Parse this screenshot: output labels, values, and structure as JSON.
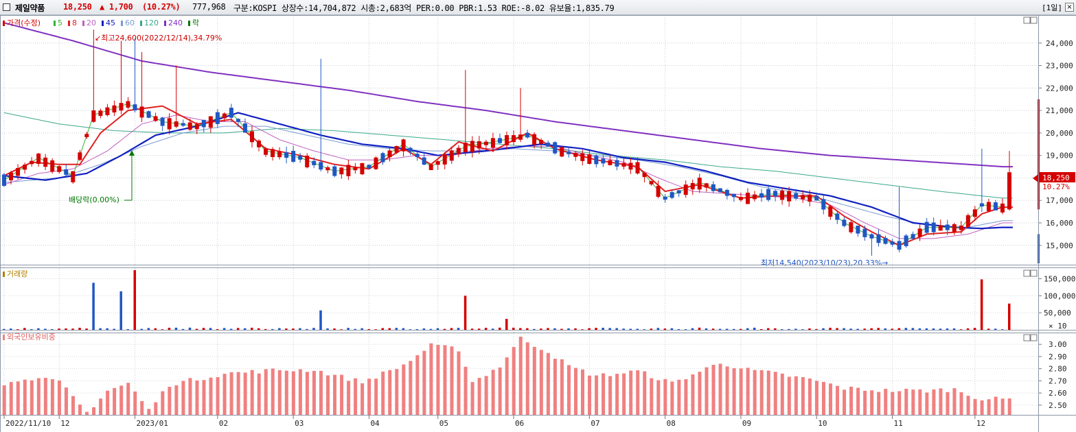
{
  "header": {
    "stock_name": "제일약품",
    "price": "18,250",
    "change": "▲ 1,700",
    "change_pct": "(10.27%)",
    "volume": "777,968",
    "info": "구분:KOSPI 상장수:14,704,872 시총:2,683억 PER:0.00 PBR:1.53 ROE:-8.02 유보율:1,835.79",
    "period": "[1일]",
    "close_glyph": "×"
  },
  "colors": {
    "up": "#d40000",
    "down": "#1f56c4",
    "ma5": "#33b533",
    "ma8": "#e02020",
    "ma20": "#c060c0",
    "ma45": "#1020c0",
    "ma60": "#7a9ad0",
    "ma120": "#3aa88a",
    "ma240": "#8030c0",
    "foreign": "#f08080",
    "annotation": "#cc0000",
    "dividend": "#007700"
  },
  "legend": {
    "price": "가격(수정)",
    "ma": [
      {
        "label": "5",
        "color": "#33b533"
      },
      {
        "label": "8",
        "color": "#e02020"
      },
      {
        "label": "20",
        "color": "#c060c0"
      },
      {
        "label": "45",
        "color": "#1020c0"
      },
      {
        "label": "60",
        "color": "#7a9ad0"
      },
      {
        "label": "120",
        "color": "#3aa88a"
      },
      {
        "label": "240",
        "color": "#8030c0"
      }
    ],
    "fall": "락"
  },
  "annotations": {
    "high": "↙최고24,600(2022/12/14),34.79%",
    "low": "최저14,540(2023/10/23),20.33%→",
    "dividend": "배당락(0.00%)"
  },
  "price_tag": {
    "value": "18,250",
    "pct": "10.27%"
  },
  "volume_panel": {
    "title": "거래량",
    "unit": "× 10"
  },
  "foreign_panel": {
    "title": "외국인보유비중"
  },
  "chart_data": [
    {
      "type": "candlestick",
      "title": "가격(수정)",
      "x_labels": [
        "2022/11/10",
        "12",
        "2023/01",
        "02",
        "03",
        "04",
        "05",
        "06",
        "07",
        "08",
        "09",
        "10",
        "11",
        "12"
      ],
      "ylim": [
        14200,
        25000
      ],
      "yticks": [
        15000,
        16000,
        17000,
        18000,
        19000,
        20000,
        21000,
        22000,
        23000,
        24000
      ],
      "high": {
        "value": 24600,
        "date": "2022/12/14"
      },
      "low": {
        "value": 14540,
        "date": "2023/10/23"
      },
      "last": 18250,
      "ma_levels": [
        {
          "name": "5",
          "points": [
            [
              0,
              17900
            ],
            [
              5,
              18900
            ],
            [
              10,
              18100
            ],
            [
              13,
              20800
            ],
            [
              18,
              21300
            ],
            [
              23,
              20500
            ],
            [
              28,
              20300
            ],
            [
              33,
              20900
            ],
            [
              38,
              19200
            ],
            [
              43,
              18900
            ],
            [
              48,
              18300
            ],
            [
              53,
              18500
            ],
            [
              58,
              19500
            ],
            [
              62,
              18500
            ],
            [
              67,
              19400
            ],
            [
              71,
              19600
            ],
            [
              76,
              19900
            ],
            [
              81,
              19200
            ],
            [
              86,
              18800
            ],
            [
              92,
              18500
            ],
            [
              96,
              17100
            ],
            [
              101,
              17800
            ],
            [
              107,
              17100
            ],
            [
              112,
              17300
            ],
            [
              118,
              17100
            ],
            [
              122,
              16000
            ],
            [
              126,
              15400
            ],
            [
              130,
              15000
            ],
            [
              134,
              15800
            ],
            [
              139,
              15800
            ],
            [
              142,
              16800
            ],
            [
              145,
              16700
            ]
          ]
        },
        {
          "name": "8",
          "points": [
            [
              0,
              18100
            ],
            [
              4,
              18700
            ],
            [
              8,
              18600
            ],
            [
              11,
              18600
            ],
            [
              14,
              20000
            ],
            [
              18,
              21000
            ],
            [
              23,
              21200
            ],
            [
              28,
              20400
            ],
            [
              33,
              20600
            ],
            [
              38,
              19300
            ],
            [
              43,
              19000
            ],
            [
              48,
              18600
            ],
            [
              53,
              18400
            ],
            [
              58,
              19300
            ],
            [
              62,
              18600
            ],
            [
              66,
              19600
            ],
            [
              71,
              19200
            ],
            [
              76,
              20000
            ],
            [
              80,
              19300
            ],
            [
              86,
              18800
            ],
            [
              92,
              18500
            ],
            [
              96,
              17400
            ],
            [
              101,
              17700
            ],
            [
              107,
              17100
            ],
            [
              112,
              17200
            ],
            [
              118,
              17200
            ],
            [
              122,
              16300
            ],
            [
              126,
              15600
            ],
            [
              130,
              15000
            ],
            [
              134,
              15500
            ],
            [
              139,
              15600
            ],
            [
              142,
              16400
            ],
            [
              145,
              16700
            ]
          ]
        },
        {
          "name": "20",
          "points": [
            [
              0,
              17700
            ],
            [
              5,
              18200
            ],
            [
              10,
              18400
            ],
            [
              15,
              19200
            ],
            [
              20,
              20400
            ],
            [
              25,
              20800
            ],
            [
              30,
              20500
            ],
            [
              35,
              20500
            ],
            [
              40,
              19700
            ],
            [
              45,
              19200
            ],
            [
              50,
              18800
            ],
            [
              55,
              18800
            ],
            [
              60,
              19000
            ],
            [
              65,
              19000
            ],
            [
              70,
              19300
            ],
            [
              75,
              19400
            ],
            [
              80,
              19400
            ],
            [
              85,
              19000
            ],
            [
              90,
              18700
            ],
            [
              95,
              18000
            ],
            [
              100,
              17400
            ],
            [
              105,
              17300
            ],
            [
              110,
              17200
            ],
            [
              115,
              17100
            ],
            [
              120,
              16800
            ],
            [
              125,
              16000
            ],
            [
              130,
              15300
            ],
            [
              135,
              15300
            ],
            [
              140,
              15500
            ],
            [
              145,
              16000
            ]
          ]
        },
        {
          "name": "45",
          "points": [
            [
              0,
              18100
            ],
            [
              6,
              17900
            ],
            [
              12,
              18200
            ],
            [
              17,
              19000
            ],
            [
              22,
              19900
            ],
            [
              28,
              20300
            ],
            [
              34,
              20900
            ],
            [
              40,
              20400
            ],
            [
              46,
              19900
            ],
            [
              52,
              19500
            ],
            [
              58,
              19300
            ],
            [
              63,
              19000
            ],
            [
              70,
              19200
            ],
            [
              78,
              19500
            ],
            [
              84,
              19300
            ],
            [
              90,
              18900
            ],
            [
              96,
              18700
            ],
            [
              102,
              18300
            ],
            [
              108,
              17800
            ],
            [
              114,
              17500
            ],
            [
              120,
              17200
            ],
            [
              126,
              16700
            ],
            [
              132,
              16000
            ],
            [
              138,
              15800
            ],
            [
              142,
              15750
            ],
            [
              145,
              15800
            ]
          ]
        },
        {
          "name": "60",
          "points": [
            [
              0,
              17800
            ],
            [
              8,
              18000
            ],
            [
              14,
              18600
            ],
            [
              20,
              19400
            ],
            [
              26,
              20000
            ],
            [
              32,
              20300
            ],
            [
              38,
              20300
            ],
            [
              44,
              19900
            ],
            [
              50,
              19500
            ],
            [
              56,
              19300
            ],
            [
              62,
              19200
            ],
            [
              68,
              19200
            ],
            [
              74,
              19300
            ],
            [
              80,
              19200
            ],
            [
              86,
              19000
            ],
            [
              92,
              18800
            ],
            [
              98,
              18500
            ],
            [
              104,
              18100
            ],
            [
              110,
              17600
            ],
            [
              116,
              17300
            ],
            [
              122,
              16800
            ],
            [
              128,
              16300
            ],
            [
              134,
              15900
            ],
            [
              140,
              15800
            ],
            [
              145,
              16100
            ]
          ]
        },
        {
          "name": "120",
          "points": [
            [
              0,
              20900
            ],
            [
              8,
              20400
            ],
            [
              16,
              20100
            ],
            [
              24,
              20000
            ],
            [
              32,
              20000
            ],
            [
              40,
              20200
            ],
            [
              48,
              20100
            ],
            [
              56,
              19900
            ],
            [
              64,
              19700
            ],
            [
              72,
              19500
            ],
            [
              80,
              19300
            ],
            [
              88,
              19000
            ],
            [
              96,
              18800
            ],
            [
              104,
              18500
            ],
            [
              112,
              18300
            ],
            [
              120,
              18000
            ],
            [
              128,
              17700
            ],
            [
              136,
              17400
            ],
            [
              142,
              17200
            ],
            [
              145,
              17100
            ]
          ]
        },
        {
          "name": "240",
          "points": [
            [
              0,
              24900
            ],
            [
              10,
              24100
            ],
            [
              20,
              23200
            ],
            [
              30,
              22700
            ],
            [
              40,
              22300
            ],
            [
              50,
              21900
            ],
            [
              60,
              21400
            ],
            [
              70,
              21000
            ],
            [
              80,
              20500
            ],
            [
              90,
              20100
            ],
            [
              100,
              19700
            ],
            [
              110,
              19300
            ],
            [
              120,
              19000
            ],
            [
              130,
              18800
            ],
            [
              140,
              18600
            ],
            [
              145,
              18500
            ]
          ]
        }
      ]
    },
    {
      "type": "bar",
      "title": "거래량",
      "unit": "× 10",
      "ylim": [
        0,
        175000
      ],
      "yticks": [
        50000,
        100000,
        150000
      ],
      "peaks": [
        {
          "x": 13,
          "value": 138000
        },
        {
          "x": 17,
          "value": 113000
        },
        {
          "x": 19,
          "value": 175000
        },
        {
          "x": 46,
          "value": 57000
        },
        {
          "x": 67,
          "value": 100000
        },
        {
          "x": 73,
          "value": 32000
        },
        {
          "x": 142,
          "value": 148000
        },
        {
          "x": 146,
          "value": 77000
        }
      ]
    },
    {
      "type": "bar",
      "title": "외국인보유비중",
      "ylim": [
        2.42,
        3.08
      ],
      "yticks": [
        2.5,
        2.6,
        2.7,
        2.8,
        2.9,
        3.0
      ],
      "profile": [
        [
          0,
          2.66
        ],
        [
          3,
          2.73
        ],
        [
          8,
          2.69
        ],
        [
          12,
          2.44
        ],
        [
          15,
          2.62
        ],
        [
          18,
          2.68
        ],
        [
          21,
          2.46
        ],
        [
          24,
          2.67
        ],
        [
          32,
          2.76
        ],
        [
          40,
          2.79
        ],
        [
          45,
          2.79
        ],
        [
          52,
          2.69
        ],
        [
          58,
          2.83
        ],
        [
          62,
          2.99
        ],
        [
          66,
          2.96
        ],
        [
          68,
          2.69
        ],
        [
          72,
          2.82
        ],
        [
          75,
          3.05
        ],
        [
          79,
          2.94
        ],
        [
          82,
          2.82
        ],
        [
          86,
          2.74
        ],
        [
          92,
          2.78
        ],
        [
          97,
          2.68
        ],
        [
          104,
          2.85
        ],
        [
          108,
          2.79
        ],
        [
          112,
          2.76
        ],
        [
          118,
          2.7
        ],
        [
          122,
          2.64
        ],
        [
          128,
          2.62
        ],
        [
          134,
          2.62
        ],
        [
          138,
          2.63
        ],
        [
          142,
          2.55
        ],
        [
          146,
          2.55
        ]
      ]
    }
  ]
}
